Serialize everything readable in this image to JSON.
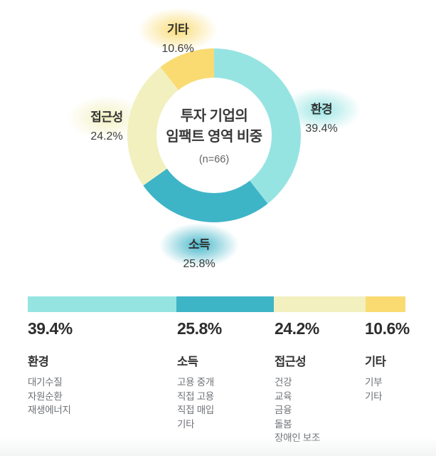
{
  "chart_data": {
    "type": "pie",
    "variant": "donut",
    "title": "투자 기업의 임팩트 영역 비중",
    "subtitle": "(n=66)",
    "categories": [
      "환경",
      "소득",
      "접근성",
      "기타"
    ],
    "values": [
      39.4,
      25.8,
      24.2,
      10.6
    ],
    "value_labels": [
      "39.4%",
      "25.8%",
      "24.2%",
      "10.6%"
    ],
    "colors": [
      "#96e4e2",
      "#3eb4c7",
      "#f2f0bf",
      "#f9db72"
    ],
    "start_angle_deg": 0,
    "direction": "clockwise",
    "legend_position": "bottom",
    "sub_items": {
      "환경": [
        "대기수질",
        "자원순환",
        "재생에너지"
      ],
      "소득": [
        "고용 중개",
        "직접 고용",
        "직접 매입",
        "기타"
      ],
      "접근성": [
        "건강",
        "교육",
        "금융",
        "돌봄",
        "장애인 보조"
      ],
      "기타": [
        "기부",
        "기타"
      ]
    }
  },
  "donut": {
    "center": {
      "line1": "투자 기업의",
      "line2": "임팩트 영역 비중",
      "sample": "(n=66)"
    },
    "labels": [
      {
        "name": "환경",
        "pct": "39.4%"
      },
      {
        "name": "소득",
        "pct": "25.8%"
      },
      {
        "name": "접근성",
        "pct": "24.2%"
      },
      {
        "name": "기타",
        "pct": "10.6%"
      }
    ]
  },
  "legend": {
    "columns": [
      {
        "pct": "39.4%",
        "name": "환경",
        "items": [
          "대기수질",
          "자원순환",
          "재생에너지"
        ]
      },
      {
        "pct": "25.8%",
        "name": "소득",
        "items": [
          "고용 중개",
          "직접 고용",
          "직접 매입",
          "기타"
        ]
      },
      {
        "pct": "24.2%",
        "name": "접근성",
        "items": [
          "건강",
          "교육",
          "금융",
          "돌봄",
          "장애인 보조"
        ]
      },
      {
        "pct": "10.6%",
        "name": "기타",
        "items": [
          "기부",
          "기타"
        ]
      }
    ]
  }
}
